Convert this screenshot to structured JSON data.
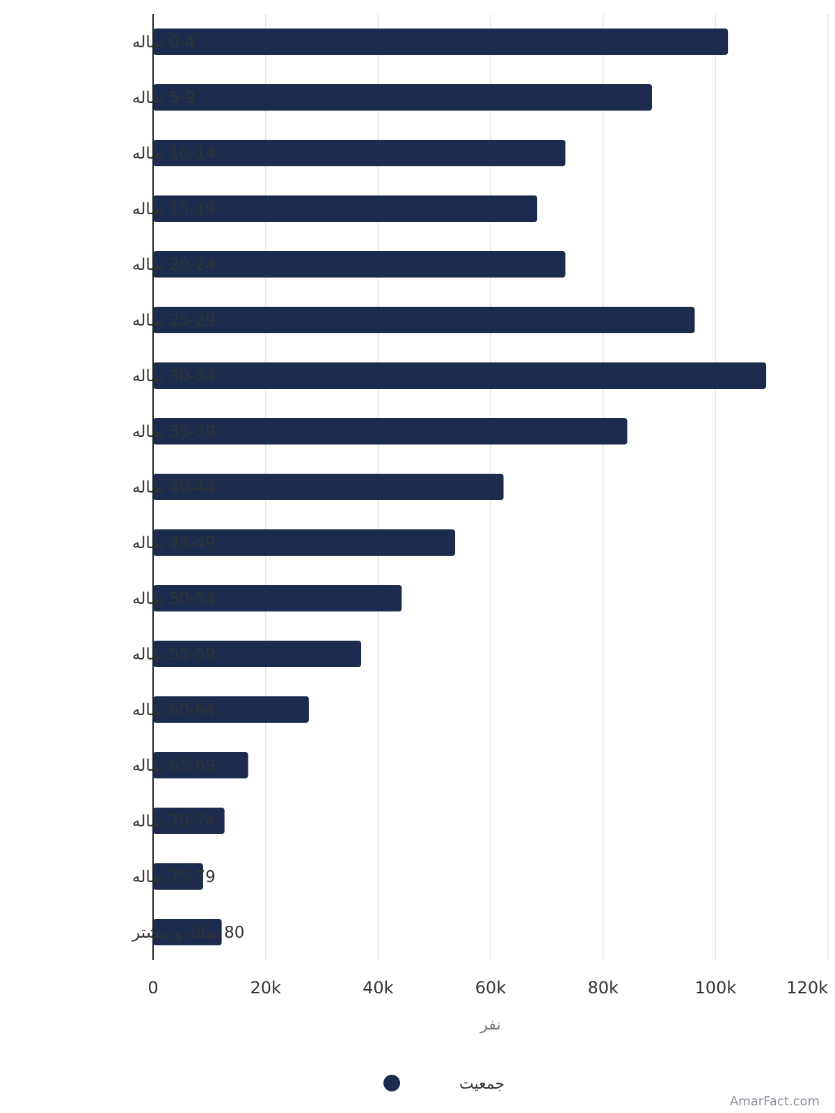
{
  "chart_data": {
    "type": "bar",
    "orientation": "horizontal",
    "categories": [
      "0-4 ساله",
      "5-9 ساله",
      "10-14 ساله",
      "15-19 ساله",
      "20-24 ساله",
      "25-29 ساله",
      "30-34 ساله",
      "35-39 ساله",
      "40-44 ساله",
      "45-49 ساله",
      "50-54 ساله",
      "55-59 ساله",
      "60-64 ساله",
      "65-69 ساله",
      "70-74 ساله",
      "75-79 ساله",
      "80 ساله و بیشتر"
    ],
    "series": [
      {
        "name": "جمعیت",
        "color": "#1c2b4e",
        "values": [
          102200,
          88700,
          73300,
          68300,
          73300,
          96300,
          109000,
          84300,
          62300,
          53700,
          44200,
          37000,
          27700,
          16900,
          12700,
          8900,
          12200
        ]
      }
    ],
    "xlabel": "نفر",
    "xlim": [
      0,
      120000
    ],
    "xticks": [
      0,
      20000,
      40000,
      60000,
      80000,
      100000,
      120000
    ],
    "xtick_labels": [
      "0",
      "20k",
      "40k",
      "60k",
      "80k",
      "100k",
      "120k"
    ],
    "grid": true,
    "legend_position": "bottom"
  },
  "watermark": "AmarFact.com"
}
